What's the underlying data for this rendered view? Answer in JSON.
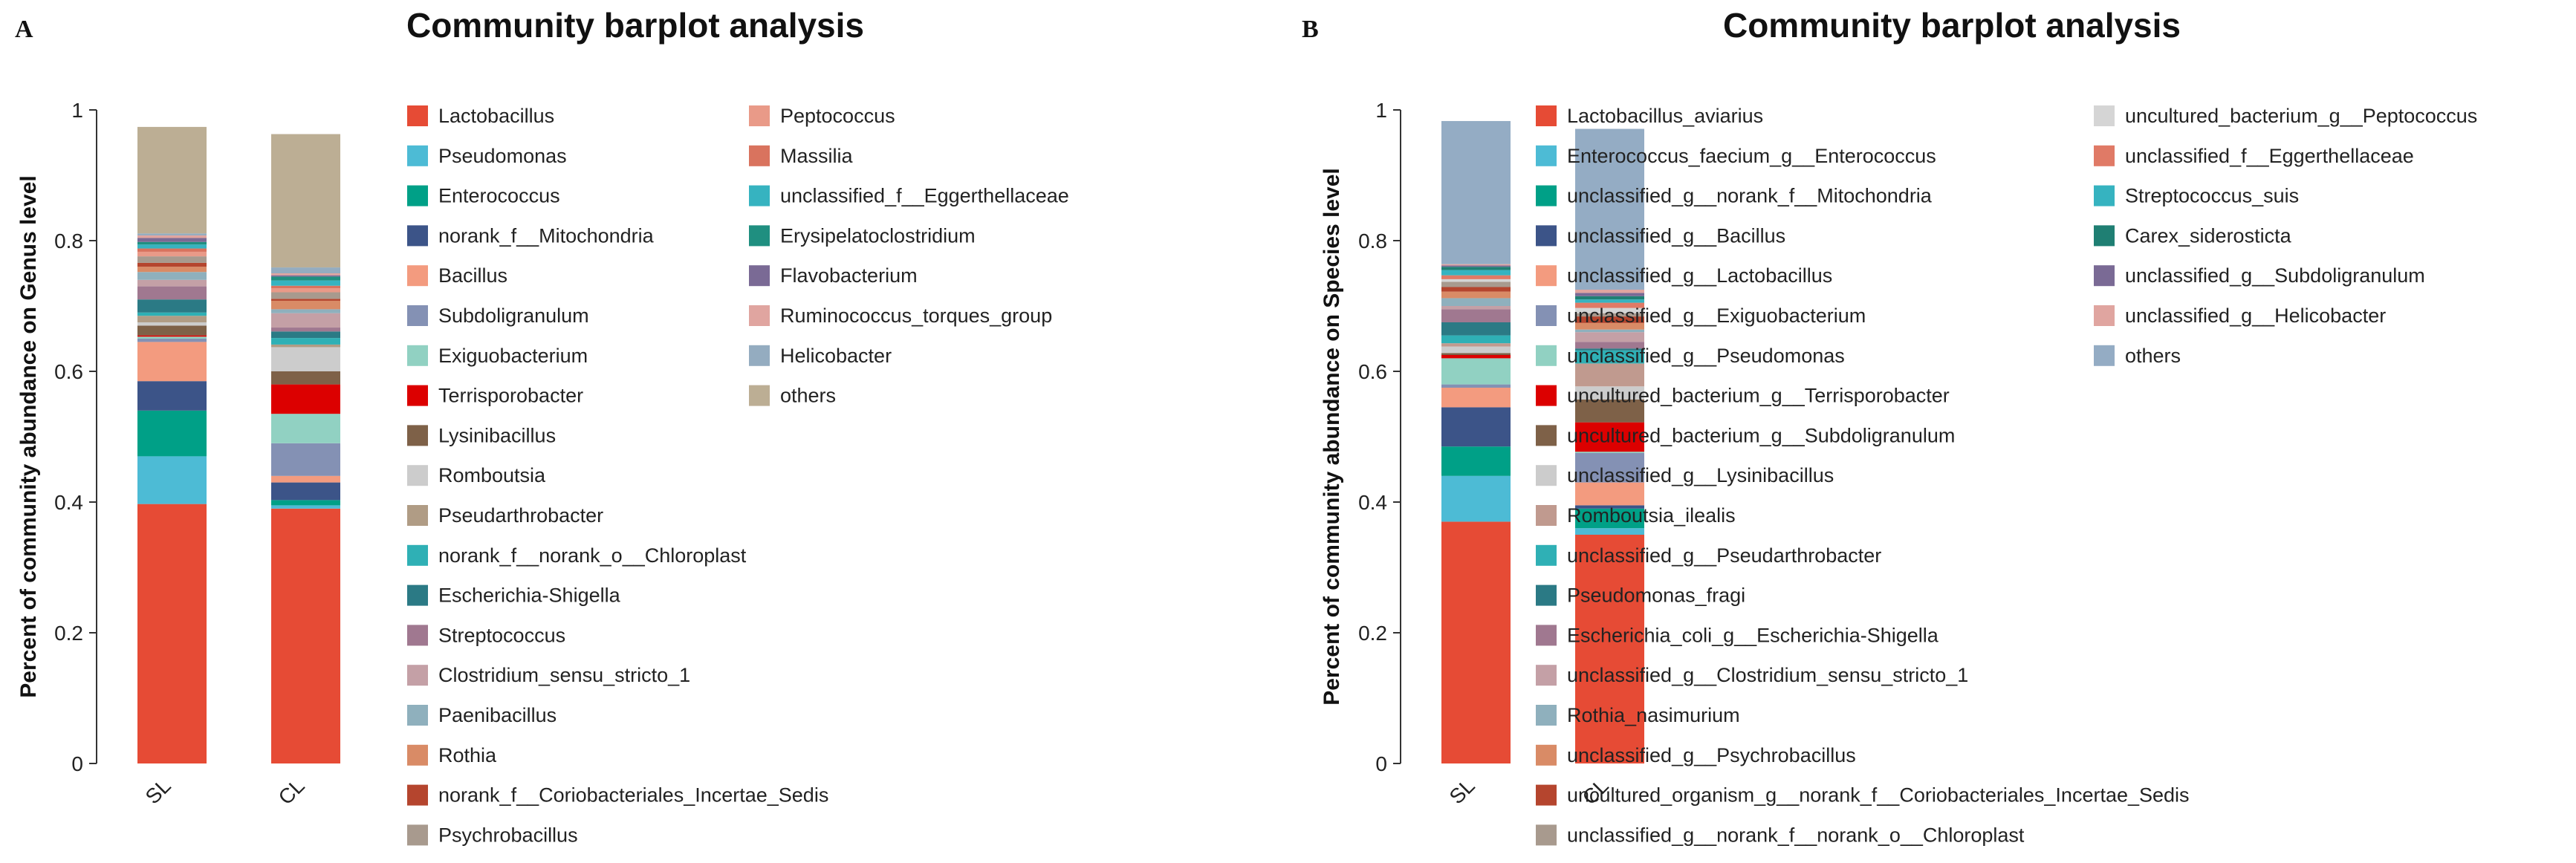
{
  "chart_data": [
    {
      "type": "bar",
      "stacked": true,
      "panel": "A",
      "title": "Community barplot analysis",
      "xlabel": "",
      "ylabel": "Percent of community abundance on Genus level",
      "ylim": [
        0,
        1
      ],
      "yticks": [
        "0",
        "0.2",
        "0.4",
        "0.6",
        "0.8",
        "1"
      ],
      "categories": [
        "SL",
        "CL"
      ],
      "series": [
        {
          "name": "Lactobacillus",
          "color": "#E64B35",
          "values": [
            0.397,
            0.39
          ]
        },
        {
          "name": "Pseudomonas",
          "color": "#4DBBD5",
          "values": [
            0.073,
            0.005
          ]
        },
        {
          "name": "Enterococcus",
          "color": "#00A087",
          "values": [
            0.07,
            0.008
          ]
        },
        {
          "name": "norank_f__Mitochondria",
          "color": "#3C5488",
          "values": [
            0.045,
            0.027
          ]
        },
        {
          "name": "Bacillus",
          "color": "#F39B7F",
          "values": [
            0.06,
            0.01
          ]
        },
        {
          "name": "Subdoligranulum",
          "color": "#8491B4",
          "values": [
            0.005,
            0.05
          ]
        },
        {
          "name": "Exiguobacterium",
          "color": "#91D1C2",
          "values": [
            0.003,
            0.045
          ]
        },
        {
          "name": "Terrisporobacter",
          "color": "#DC0000",
          "values": [
            0.002,
            0.045
          ]
        },
        {
          "name": "Lysinibacillus",
          "color": "#7E6148",
          "values": [
            0.015,
            0.02
          ]
        },
        {
          "name": "Romboutsia",
          "color": "#CCCCCC",
          "values": [
            0.005,
            0.037
          ]
        },
        {
          "name": "Pseudarthrobacter",
          "color": "#B09C85",
          "values": [
            0.01,
            0.004
          ]
        },
        {
          "name": "norank_f__norank_o__Chloroplast",
          "color": "#2FB0B5",
          "values": [
            0.005,
            0.01
          ]
        },
        {
          "name": "Escherichia-Shigella",
          "color": "#2B7A85",
          "values": [
            0.02,
            0.01
          ]
        },
        {
          "name": "Streptococcus",
          "color": "#A07890",
          "values": [
            0.02,
            0.006
          ]
        },
        {
          "name": "Clostridium_sensu_stricto_1",
          "color": "#C4A0A6",
          "values": [
            0.01,
            0.022
          ]
        },
        {
          "name": "Paenibacillus",
          "color": "#8FB0BD",
          "values": [
            0.012,
            0.006
          ]
        },
        {
          "name": "Rothia",
          "color": "#D98B66",
          "values": [
            0.008,
            0.013
          ]
        },
        {
          "name": "norank_f__Coriobacteriales_Incertae_Sedis",
          "color": "#B5452E",
          "values": [
            0.006,
            0.003
          ]
        },
        {
          "name": "Psychrobacillus",
          "color": "#A89A8E",
          "values": [
            0.01,
            0.01
          ]
        },
        {
          "name": "Peptococcus",
          "color": "#E99A88",
          "values": [
            0.007,
            0.006
          ]
        },
        {
          "name": "Massilia",
          "color": "#D9735E",
          "values": [
            0.005,
            0.004
          ]
        },
        {
          "name": "unclassified_f__Eggerthellaceae",
          "color": "#36B3C0",
          "values": [
            0.006,
            0.008
          ]
        },
        {
          "name": "Erysipelatoclostridium",
          "color": "#1F8F80",
          "values": [
            0.004,
            0.006
          ]
        },
        {
          "name": "Flavobacterium",
          "color": "#7A6A95",
          "values": [
            0.006,
            0.002
          ]
        },
        {
          "name": "Ruminococcus_torques_group",
          "color": "#E0A5A0",
          "values": [
            0.004,
            0.003
          ]
        },
        {
          "name": "Helicobacter",
          "color": "#94ACC0",
          "values": [
            0.003,
            0.009
          ]
        },
        {
          "name": "others",
          "color": "#BCAE94",
          "values": [
            0.163,
            0.204
          ]
        }
      ]
    },
    {
      "type": "bar",
      "stacked": true,
      "panel": "B",
      "title": "Community barplot analysis",
      "xlabel": "",
      "ylabel": "Percent of community abundance on Species level",
      "ylim": [
        0,
        1
      ],
      "yticks": [
        "0",
        "0.2",
        "0.4",
        "0.6",
        "0.8",
        "1"
      ],
      "categories": [
        "SL",
        "CL"
      ],
      "series": [
        {
          "name": "Lactobacillus_aviarius",
          "color": "#E64B35",
          "values": [
            0.37,
            0.35
          ]
        },
        {
          "name": "Enterococcus_faecium_g__Enterococcus",
          "color": "#4DBBD5",
          "values": [
            0.07,
            0.01
          ]
        },
        {
          "name": "unclassified_g__norank_f__Mitochondria",
          "color": "#00A087",
          "values": [
            0.045,
            0.03
          ]
        },
        {
          "name": "unclassified_g__Bacillus",
          "color": "#3C5488",
          "values": [
            0.06,
            0.005
          ]
        },
        {
          "name": "unclassified_g__Lactobacillus",
          "color": "#F39B7F",
          "values": [
            0.03,
            0.035
          ]
        },
        {
          "name": "unclassified_g__Exiguobacterium",
          "color": "#8491B4",
          "values": [
            0.005,
            0.045
          ]
        },
        {
          "name": "unclassified_g__Pseudomonas",
          "color": "#91D1C2",
          "values": [
            0.04,
            0.002
          ]
        },
        {
          "name": "uncultured_bacterium_g__Terrisporobacter",
          "color": "#DC0000",
          "values": [
            0.005,
            0.045
          ]
        },
        {
          "name": "uncultured_bacterium_g__Subdoligranulum",
          "color": "#7E6148",
          "values": [
            0.003,
            0.035
          ]
        },
        {
          "name": "unclassified_g__Lysinibacillus",
          "color": "#CCCCCC",
          "values": [
            0.01,
            0.02
          ]
        },
        {
          "name": "Romboutsia_ilealis",
          "color": "#C09A8F",
          "values": [
            0.005,
            0.035
          ]
        },
        {
          "name": "unclassified_g__Pseudarthrobacter",
          "color": "#2FB0B5",
          "values": [
            0.012,
            0.02
          ]
        },
        {
          "name": "Pseudomonas_fragi",
          "color": "#2B7A85",
          "values": [
            0.02,
            0.003
          ]
        },
        {
          "name": "Escherichia_coli_g__Escherichia-Shigella",
          "color": "#A07890",
          "values": [
            0.02,
            0.01
          ]
        },
        {
          "name": "unclassified_g__Clostridium_sensu_stricto_1",
          "color": "#C4A0A6",
          "values": [
            0.005,
            0.015
          ]
        },
        {
          "name": "Rothia_nasimurium",
          "color": "#8FB0BD",
          "values": [
            0.012,
            0.004
          ]
        },
        {
          "name": "unclassified_g__Psychrobacillus",
          "color": "#D98B66",
          "values": [
            0.01,
            0.01
          ]
        },
        {
          "name": "uncultured_organism_g__norank_f__Coriobacteriales_Incertae_Sedis",
          "color": "#B5452E",
          "values": [
            0.007,
            0.01
          ]
        },
        {
          "name": "unclassified_g__norank_f__norank_o__Chloroplast",
          "color": "#A89A8E",
          "values": [
            0.008,
            0.005
          ]
        },
        {
          "name": "uncultured_bacterium_g__Peptococcus",
          "color": "#D5D5D5",
          "values": [
            0.004,
            0.008
          ]
        },
        {
          "name": "unclassified_f__Eggerthellaceae",
          "color": "#E07A66",
          "values": [
            0.006,
            0.008
          ]
        },
        {
          "name": "Streptococcus_suis",
          "color": "#36B3C0",
          "values": [
            0.008,
            0.005
          ]
        },
        {
          "name": "Carex_siderosticta",
          "color": "#1F7F73",
          "values": [
            0.005,
            0.005
          ]
        },
        {
          "name": "unclassified_g__Subdoligranulum",
          "color": "#7A6A95",
          "values": [
            0.002,
            0.005
          ]
        },
        {
          "name": "unclassified_g__Helicobacter",
          "color": "#E0A5A0",
          "values": [
            0.002,
            0.005
          ]
        },
        {
          "name": "others",
          "color": "#94ACC4",
          "values": [
            0.219,
            0.246
          ]
        }
      ]
    }
  ]
}
